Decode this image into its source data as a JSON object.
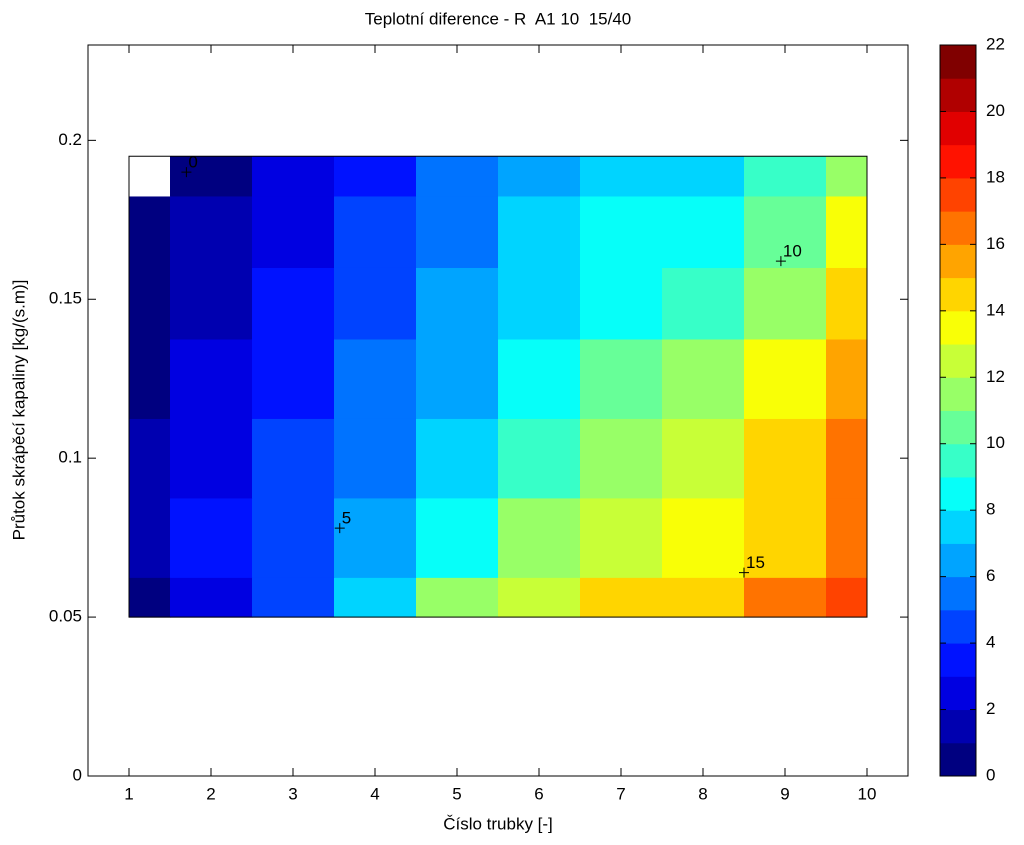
{
  "chart_data": {
    "type": "contourf",
    "title": "Teplotní diference - R  A1 10  15/40",
    "xlabel": "Číslo trubky [-]",
    "ylabel": "Průtok skrápěcí kapaliny [kg/(s.m)]",
    "x": [
      1,
      2,
      3,
      4,
      5,
      6,
      7,
      8,
      9,
      10
    ],
    "y": [
      0.05,
      0.075,
      0.1,
      0.125,
      0.15,
      0.17,
      0.195
    ],
    "z": [
      [
        0.5,
        2.5,
        4.5,
        7,
        11,
        12.5,
        14.5,
        14.5,
        16,
        17
      ],
      [
        1,
        3,
        4.5,
        6,
        8.5,
        11,
        12.5,
        13,
        14.5,
        16
      ],
      [
        1,
        2.5,
        4,
        5,
        7.5,
        9,
        11,
        12,
        14,
        16
      ],
      [
        0.5,
        2,
        3.5,
        5,
        6.5,
        8,
        10,
        11,
        13,
        15
      ],
      [
        0.5,
        1.5,
        3,
        4.5,
        6,
        7.5,
        8.5,
        9,
        11,
        14
      ],
      [
        0.5,
        1,
        2.5,
        4,
        5.5,
        7,
        8,
        8.5,
        10,
        13
      ],
      [
        -0.5,
        0.5,
        2,
        3.5,
        5,
        6.5,
        7.5,
        7.5,
        9,
        11
      ]
    ],
    "xlim": [
      0.5,
      10.5
    ],
    "ylim": [
      0,
      0.23
    ],
    "xticks": [
      1,
      2,
      3,
      4,
      5,
      6,
      7,
      8,
      9,
      10
    ],
    "yticks": [
      0,
      0.05,
      0.1,
      0.15,
      0.2
    ],
    "colormap": "jet",
    "clim": [
      0,
      22
    ],
    "levels": 22,
    "cticks": [
      0,
      2,
      4,
      6,
      8,
      10,
      12,
      14,
      16,
      18,
      20,
      22
    ],
    "contour_labels": [
      {
        "value": 0,
        "x": 1.7,
        "y": 0.19
      },
      {
        "value": 5,
        "x": 3.57,
        "y": 0.078
      },
      {
        "value": 10,
        "x": 8.95,
        "y": 0.162
      },
      {
        "value": 15,
        "x": 8.5,
        "y": 0.064
      }
    ]
  }
}
